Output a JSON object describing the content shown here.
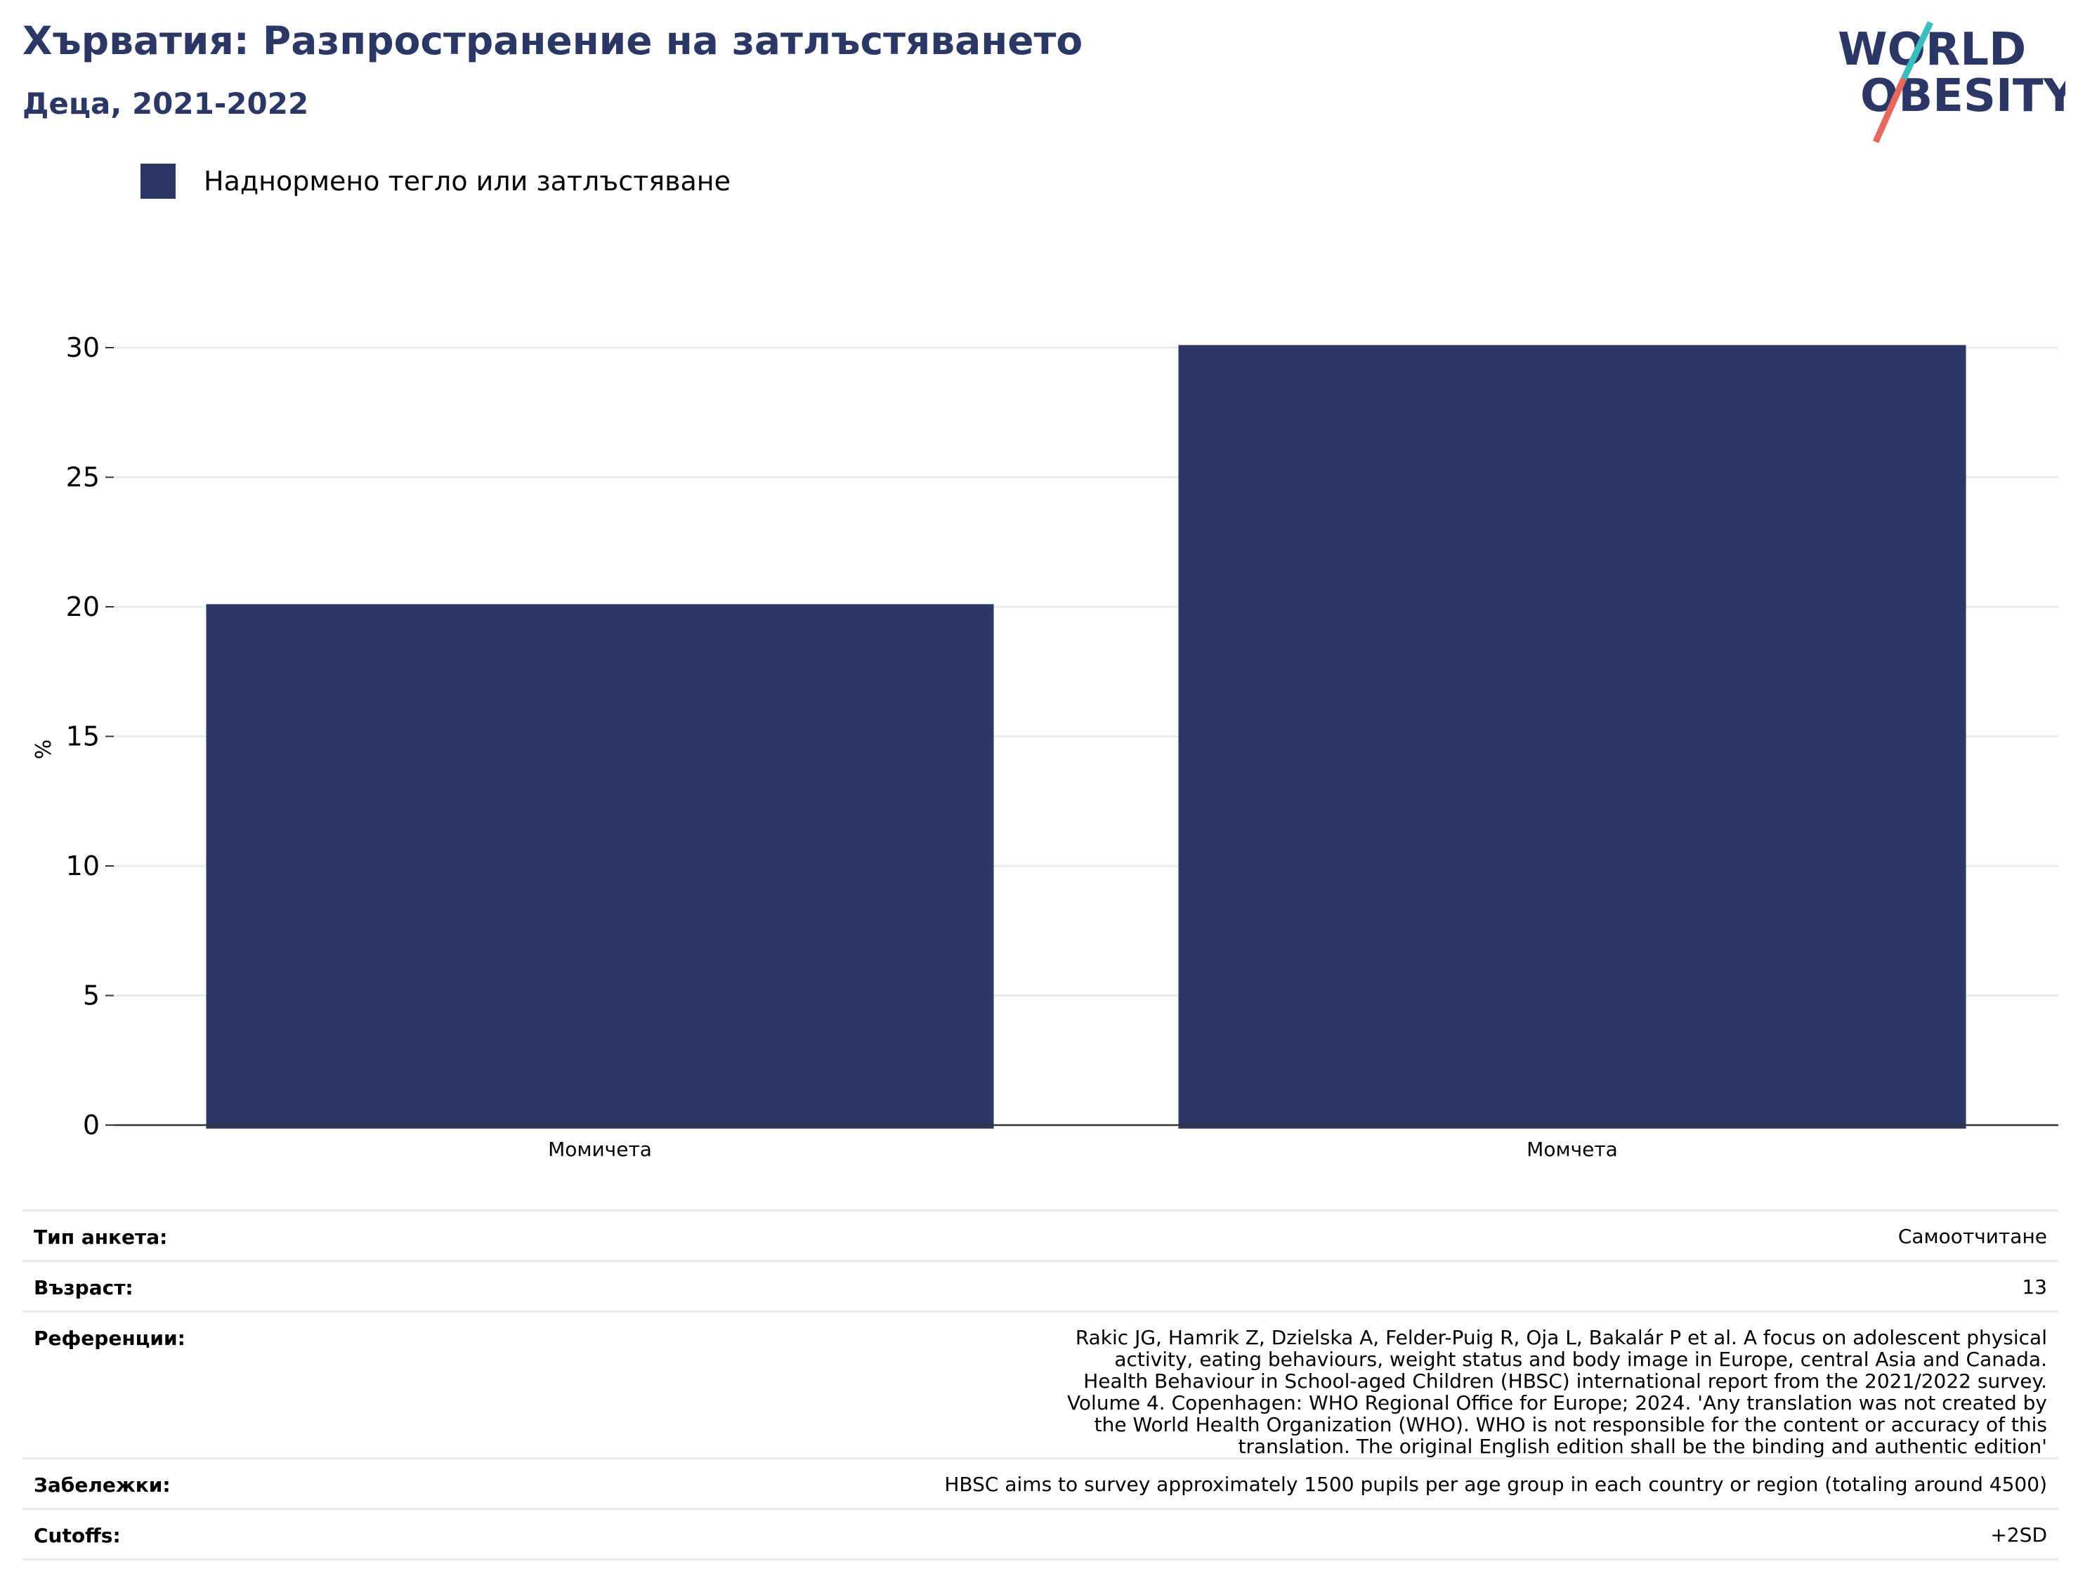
{
  "header": {
    "title": "Хърватия: Разпространение на затлъстяването",
    "subtitle": "Деца, 2021-2022"
  },
  "logo": {
    "line1": "WORLD",
    "line2": "OBESITY",
    "colors": {
      "text": "#2b3765",
      "slash_top": "#3bbdbd",
      "slash_bottom": "#e7685c"
    }
  },
  "legend": {
    "items": [
      {
        "label": "Наднормено тегло или затлъстяване",
        "color": "#2b3765"
      }
    ]
  },
  "chart_data": {
    "type": "bar",
    "categories": [
      "Момичета",
      "Момчета"
    ],
    "series": [
      {
        "name": "Наднормено тегло или затлъстяване",
        "values": [
          20.1,
          30.1
        ],
        "color": "#2b3765"
      }
    ],
    "ylabel": "%",
    "ylim": [
      0,
      32
    ],
    "yticks": [
      0,
      5,
      10,
      15,
      20,
      25,
      30
    ],
    "grid": true,
    "legend_position": "top-left"
  },
  "info": {
    "rows": [
      {
        "key": "Тип анкета:",
        "value": "Самоотчитане"
      },
      {
        "key": "Възраст:",
        "value": "13"
      },
      {
        "key": "Референции:",
        "value": "Rakic JG, Hamrik Z, Dzielska A, Felder-Puig R, Oja L, Bakalár P et al. A focus on adolescent physical activity, eating behaviours, weight status and body image in Europe, central Asia and Canada. Health Behaviour in School-aged Children (HBSC) international report from the 2021/2022 survey. Volume 4. Copenhagen: WHO Regional Office for Europe; 2024. 'Any translation was not created by the World Health Organization (WHO). WHO is not responsible for the content or accuracy of this translation. The original English edition shall be the binding and authentic edition'"
      },
      {
        "key": "Забележки:",
        "value": "HBSC aims to survey approximately 1500 pupils per age group in each country or region (totaling around 4500)"
      },
      {
        "key": "Cutoffs:",
        "value": "+2SD"
      }
    ]
  }
}
